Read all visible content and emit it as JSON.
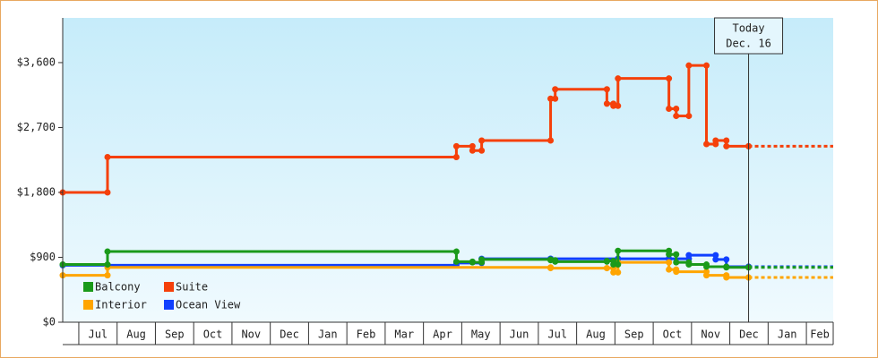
{
  "chart_data": {
    "type": "step-line",
    "ylim": [
      0,
      4220
    ],
    "yticks": [
      {
        "value": 0,
        "label": "$0"
      },
      {
        "value": 900,
        "label": "$900"
      },
      {
        "value": 1800,
        "label": "$1,800"
      },
      {
        "value": 2700,
        "label": "$2,700"
      },
      {
        "value": 3600,
        "label": "$3,600"
      }
    ],
    "xlim": [
      0.58,
      20.7
    ],
    "xticks": [
      {
        "value": 1.5,
        "label": "Jul"
      },
      {
        "value": 2.5,
        "label": "Aug"
      },
      {
        "value": 3.5,
        "label": "Sep"
      },
      {
        "value": 4.5,
        "label": "Oct"
      },
      {
        "value": 5.5,
        "label": "Nov"
      },
      {
        "value": 6.5,
        "label": "Dec"
      },
      {
        "value": 7.5,
        "label": "Jan"
      },
      {
        "value": 8.5,
        "label": "Feb"
      },
      {
        "value": 9.5,
        "label": "Mar"
      },
      {
        "value": 10.5,
        "label": "Apr"
      },
      {
        "value": 11.5,
        "label": "May"
      },
      {
        "value": 12.5,
        "label": "Jun"
      },
      {
        "value": 13.5,
        "label": "Jul"
      },
      {
        "value": 14.5,
        "label": "Aug"
      },
      {
        "value": 15.5,
        "label": "Sep"
      },
      {
        "value": 16.5,
        "label": "Oct"
      },
      {
        "value": 17.5,
        "label": "Nov"
      },
      {
        "value": 18.5,
        "label": "Dec"
      },
      {
        "value": 19.5,
        "label": "Jan"
      },
      {
        "value": 20.35,
        "label": "Feb"
      }
    ],
    "annotation": {
      "x": 18.49,
      "lines": [
        "Today",
        "Dec. 16"
      ]
    },
    "series": [
      {
        "name": "Balcony",
        "color": "#1a9a1a",
        "x": [
          0.58,
          1.75,
          10.86,
          11.28,
          11.52,
          13.32,
          13.44,
          14.79,
          14.96,
          15.08,
          16.41,
          16.6,
          16.93,
          17.39,
          17.91,
          18.49
        ],
        "values": [
          800,
          980,
          840,
          830,
          870,
          860,
          840,
          850,
          800,
          990,
          940,
          830,
          800,
          770,
          760,
          760
        ]
      },
      {
        "name": "Suite",
        "color": "#f5400a",
        "x": [
          0.58,
          1.75,
          10.86,
          11.28,
          11.52,
          13.32,
          13.44,
          14.79,
          14.96,
          15.08,
          16.41,
          16.6,
          16.93,
          17.39,
          17.63,
          17.91,
          18.49
        ],
        "values": [
          1800,
          2290,
          2440,
          2380,
          2520,
          3100,
          3230,
          3030,
          3000,
          3380,
          2960,
          2860,
          3560,
          2470,
          2520,
          2440,
          2440
        ]
      },
      {
        "name": "Interior",
        "color": "#ffa500",
        "x": [
          0.58,
          1.75,
          13.32,
          14.79,
          14.96,
          15.08,
          16.41,
          16.6,
          17.39,
          17.91,
          18.49
        ],
        "values": [
          650,
          760,
          750,
          750,
          690,
          830,
          730,
          700,
          650,
          620,
          620
        ]
      },
      {
        "name": "Ocean View",
        "color": "#1040ff",
        "x": [
          0.58,
          1.75,
          10.86,
          11.52,
          13.32,
          15.08,
          16.41,
          16.93,
          17.63,
          17.91,
          18.49
        ],
        "values": [
          790,
          790,
          820,
          880,
          880,
          880,
          880,
          930,
          870,
          770,
          770
        ]
      }
    ]
  }
}
